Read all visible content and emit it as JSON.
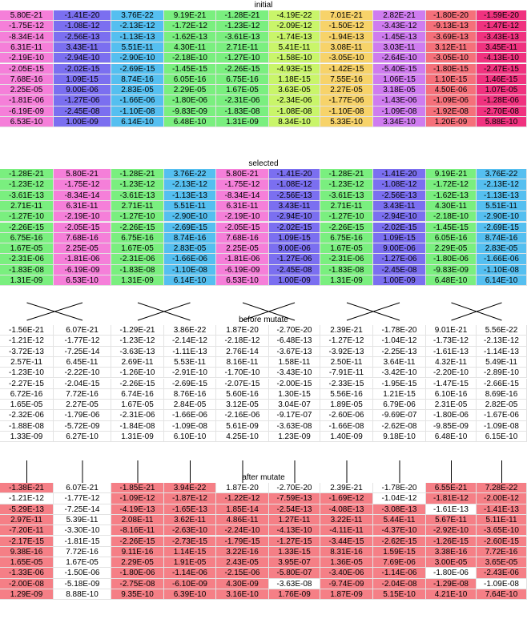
{
  "sections": [
    {
      "title": "initial",
      "rows": [
        [
          "5.80E-21",
          "-1.41E-20",
          "3.76E-22",
          "9.19E-21",
          "-1.28E-21",
          "-4.19E-22",
          "7.01E-21",
          "2.82E-21",
          "-1.80E-20",
          "-1.59E-20"
        ],
        [
          "-1.75E-12",
          "-1.08E-12",
          "-2.13E-12",
          "-1.72E-12",
          "-1.23E-12",
          "-2.09E-12",
          "-1.50E-12",
          "-3.43E-12",
          "-9.13E-13",
          "-1.47E-12"
        ],
        [
          "-8.34E-14",
          "-2.56E-13",
          "-1.13E-13",
          "-1.62E-13",
          "-3.61E-13",
          "-1.74E-13",
          "-1.94E-13",
          "-1.45E-13",
          "-3.69E-13",
          "-3.43E-13"
        ],
        [
          "6.31E-11",
          "3.43E-11",
          "5.51E-11",
          "4.30E-11",
          "2.71E-11",
          "5.41E-11",
          "3.08E-11",
          "3.03E-11",
          "3.12E-11",
          "3.45E-11"
        ],
        [
          "-2.19E-10",
          "-2.94E-10",
          "-2.90E-10",
          "-2.18E-10",
          "-1.27E-10",
          "-1.58E-10",
          "-3.05E-10",
          "-2.64E-10",
          "-3.05E-10",
          "-4.13E-10"
        ],
        [
          "-2.05E-15",
          "-2.02E-15",
          "-2.69E-15",
          "-1.45E-15",
          "-2.26E-15",
          "-4.93E-15",
          "-1.42E-15",
          "-5.40E-15",
          "-1.80E-15",
          "-2.47E-15"
        ],
        [
          "7.68E-16",
          "1.09E-15",
          "8.74E-16",
          "6.05E-16",
          "6.75E-16",
          "1.18E-15",
          "7.55E-16",
          "1.06E-15",
          "1.10E-15",
          "1.46E-15"
        ],
        [
          "2.25E-05",
          "9.00E-06",
          "2.83E-05",
          "2.29E-05",
          "1.67E-05",
          "3.63E-05",
          "2.27E-05",
          "3.18E-05",
          "4.50E-06",
          "1.07E-05"
        ],
        [
          "-1.81E-06",
          "-1.27E-06",
          "-1.66E-06",
          "-1.80E-06",
          "-2.31E-06",
          "-2.34E-06",
          "-1.77E-06",
          "-1.43E-06",
          "-1.09E-06",
          "-1.28E-06"
        ],
        [
          "-6.19E-09",
          "-2.45E-08",
          "-1.10E-08",
          "-9.83E-09",
          "-1.83E-08",
          "-1.08E-08",
          "-1.10E-08",
          "-1.09E-08",
          "-1.92E-08",
          "-2.70E-08"
        ],
        [
          "6.53E-10",
          "1.00E-09",
          "6.14E-10",
          "6.48E-10",
          "1.31E-09",
          "8.34E-10",
          "5.33E-10",
          "3.34E-10",
          "1.20E-09",
          "5.88E-10"
        ]
      ]
    },
    {
      "title": "selected",
      "rows": [
        [
          "-1.28E-21",
          "5.80E-21",
          "-1.28E-21",
          "3.76E-22",
          "5.80E-21",
          "-1.41E-20",
          "-1.28E-21",
          "-1.41E-20",
          "9.19E-21",
          "3.76E-22"
        ],
        [
          "-1.23E-12",
          "-1.75E-12",
          "-1.23E-12",
          "-2.13E-12",
          "-1.75E-12",
          "-1.08E-12",
          "-1.23E-12",
          "-1.08E-12",
          "-1.72E-12",
          "-2.13E-12"
        ],
        [
          "-3.61E-13",
          "-8.34E-14",
          "-3.61E-13",
          "-1.13E-13",
          "-8.34E-14",
          "-2.56E-13",
          "-3.61E-13",
          "-2.56E-13",
          "-1.62E-13",
          "-1.13E-13"
        ],
        [
          "2.71E-11",
          "6.31E-11",
          "2.71E-11",
          "5.51E-11",
          "6.31E-11",
          "3.43E-11",
          "2.71E-11",
          "3.43E-11",
          "4.30E-11",
          "5.51E-11"
        ],
        [
          "-1.27E-10",
          "-2.19E-10",
          "-1.27E-10",
          "-2.90E-10",
          "-2.19E-10",
          "-2.94E-10",
          "-1.27E-10",
          "-2.94E-10",
          "-2.18E-10",
          "-2.90E-10"
        ],
        [
          "-2.26E-15",
          "-2.05E-15",
          "-2.26E-15",
          "-2.69E-15",
          "-2.05E-15",
          "-2.02E-15",
          "-2.26E-15",
          "-2.02E-15",
          "-1.45E-15",
          "-2.69E-15"
        ],
        [
          "6.75E-16",
          "7.68E-16",
          "6.75E-16",
          "8.74E-16",
          "7.68E-16",
          "1.09E-15",
          "6.75E-16",
          "1.09E-15",
          "6.05E-16",
          "8.74E-16"
        ],
        [
          "1.67E-05",
          "2.25E-05",
          "1.67E-05",
          "2.83E-05",
          "2.25E-05",
          "9.00E-06",
          "1.67E-05",
          "9.00E-06",
          "2.29E-05",
          "2.83E-05"
        ],
        [
          "-2.31E-06",
          "-1.81E-06",
          "-2.31E-06",
          "-1.66E-06",
          "-1.81E-06",
          "-1.27E-06",
          "-2.31E-06",
          "-1.27E-06",
          "-1.80E-06",
          "-1.66E-06"
        ],
        [
          "-1.83E-08",
          "-6.19E-09",
          "-1.83E-08",
          "-1.10E-08",
          "-6.19E-09",
          "-2.45E-08",
          "-1.83E-08",
          "-2.45E-08",
          "-9.83E-09",
          "-1.10E-08"
        ],
        [
          "1.31E-09",
          "6.53E-10",
          "1.31E-09",
          "6.14E-10",
          "6.53E-10",
          "1.00E-09",
          "1.31E-09",
          "1.00E-09",
          "6.48E-10",
          "6.14E-10"
        ]
      ]
    },
    {
      "title": "before mutate",
      "rows": [
        [
          "-1.56E-21",
          "6.07E-21",
          "-1.29E-21",
          "3.86E-22",
          "1.87E-20",
          "-2.70E-20",
          "2.39E-21",
          "-1.78E-20",
          "9.01E-21",
          "5.56E-22"
        ],
        [
          "-1.21E-12",
          "-1.77E-12",
          "-1.23E-12",
          "-2.14E-12",
          "-2.18E-12",
          "-6.48E-13",
          "-1.27E-12",
          "-1.04E-12",
          "-1.73E-12",
          "-2.13E-12"
        ],
        [
          "-3.72E-13",
          "-7.25E-14",
          "-3.63E-13",
          "-1.11E-13",
          "2.76E-14",
          "-3.67E-13",
          "-3.92E-13",
          "-2.25E-13",
          "-1.61E-13",
          "-1.14E-13"
        ],
        [
          "2.57E-11",
          "6.45E-11",
          "2.69E-11",
          "5.53E-11",
          "8.16E-11",
          "1.58E-11",
          "2.50E-11",
          "3.64E-11",
          "4.32E-11",
          "5.49E-11"
        ],
        [
          "-1.23E-10",
          "-2.22E-10",
          "-1.26E-10",
          "-2.91E-10",
          "-1.70E-10",
          "-3.43E-10",
          "-7.91E-11",
          "-3.42E-10",
          "-2.20E-10",
          "-2.89E-10"
        ],
        [
          "-2.27E-15",
          "-2.04E-15",
          "-2.26E-15",
          "-2.69E-15",
          "-2.07E-15",
          "-2.00E-15",
          "-2.33E-15",
          "-1.95E-15",
          "-1.47E-15",
          "-2.66E-15"
        ],
        [
          "6.72E-16",
          "7.72E-16",
          "6.74E-16",
          "8.76E-16",
          "5.60E-16",
          "1.30E-15",
          "5.56E-16",
          "1.21E-15",
          "6.10E-16",
          "8.69E-16"
        ],
        [
          "1.65E-05",
          "2.27E-05",
          "1.67E-05",
          "2.84E-05",
          "3.12E-05",
          "3.04E-07",
          "1.89E-05",
          "6.79E-06",
          "2.31E-05",
          "2.82E-05"
        ],
        [
          "-2.32E-06",
          "-1.79E-06",
          "-2.31E-06",
          "-1.66E-06",
          "-2.16E-06",
          "-9.17E-07",
          "-2.60E-06",
          "-9.69E-07",
          "-1.80E-06",
          "-1.67E-06"
        ],
        [
          "-1.88E-08",
          "-5.72E-09",
          "-1.84E-08",
          "-1.09E-08",
          "5.61E-09",
          "-3.63E-08",
          "-1.66E-08",
          "-2.62E-08",
          "-9.85E-09",
          "-1.09E-08"
        ],
        [
          "1.33E-09",
          "6.27E-10",
          "1.31E-09",
          "6.10E-10",
          "4.25E-10",
          "1.23E-09",
          "1.40E-09",
          "9.18E-10",
          "6.48E-10",
          "6.15E-10"
        ]
      ]
    },
    {
      "title": "after mutate",
      "rows": [
        [
          "-1.38E-21",
          "6.07E-21",
          "-1.85E-21",
          "3.94E-22",
          "1.87E-20",
          "-2.70E-20",
          "2.39E-21",
          "-1.78E-20",
          "6.55E-21",
          "7.28E-22"
        ],
        [
          "-1.21E-12",
          "-1.77E-12",
          "-1.09E-12",
          "-1.87E-12",
          "-1.22E-12",
          "-7.59E-13",
          "-1.69E-12",
          "-1.04E-12",
          "-1.81E-12",
          "-2.00E-12"
        ],
        [
          "-5.29E-13",
          "-7.25E-14",
          "-4.19E-13",
          "-1.65E-13",
          "1.85E-14",
          "-2.54E-13",
          "-4.08E-13",
          "-3.08E-13",
          "-1.61E-13",
          "-1.41E-13"
        ],
        [
          "2.97E-11",
          "5.39E-11",
          "2.08E-11",
          "3.62E-11",
          "4.86E-11",
          "1.27E-11",
          "3.22E-11",
          "5.44E-11",
          "5.67E-11",
          "5.11E-11"
        ],
        [
          "-7.20E-11",
          "-3.30E-10",
          "-8.16E-11",
          "-2.63E-10",
          "-2.24E-10",
          "-4.13E-10",
          "-4.11E-11",
          "-4.37E-10",
          "-2.92E-10",
          "-3.65E-10"
        ],
        [
          "-2.17E-15",
          "-1.81E-15",
          "-2.26E-15",
          "-2.73E-15",
          "-1.79E-15",
          "-1.27E-15",
          "-3.44E-15",
          "-2.62E-15",
          "-1.26E-15",
          "-2.60E-15"
        ],
        [
          "9.38E-16",
          "7.72E-16",
          "9.11E-16",
          "1.14E-15",
          "3.22E-16",
          "1.33E-15",
          "8.31E-16",
          "1.59E-15",
          "3.38E-16",
          "7.72E-16"
        ],
        [
          "1.65E-05",
          "1.67E-05",
          "2.29E-05",
          "1.91E-05",
          "2.43E-05",
          "3.95E-07",
          "1.36E-05",
          "7.69E-06",
          "3.00E-05",
          "3.65E-05"
        ],
        [
          "-1.33E-06",
          "-1.50E-06",
          "-1.80E-06",
          "-1.14E-06",
          "-2.15E-06",
          "-5.80E-07",
          "-3.40E-06",
          "-1.14E-06",
          "-1.80E-06",
          "-2.43E-06"
        ],
        [
          "-2.00E-08",
          "-5.18E-09",
          "-2.75E-08",
          "-6.10E-09",
          "4.30E-09",
          "-3.63E-08",
          "-9.74E-09",
          "-2.04E-08",
          "-1.29E-08",
          "-1.09E-08"
        ],
        [
          "1.29E-09",
          "8.88E-10",
          "9.35E-10",
          "6.39E-10",
          "3.16E-10",
          "1.76E-09",
          "1.87E-09",
          "5.15E-10",
          "4.21E-10",
          "7.64E-10"
        ]
      ]
    }
  ],
  "colors": {
    "initial_columns": [
      "#f57fd9",
      "#7b6ff0",
      "#55bff0",
      "#7aef7f",
      "#7aef7f",
      "#c9f56a",
      "#f7d36a",
      "#cf7cef",
      "#f5707a",
      "#f0327f"
    ],
    "selected_columns": [
      "#7aef7f",
      "#f57fd9",
      "#7aef7f",
      "#55bff0",
      "#f57fd9",
      "#7b6ff0",
      "#7aef7f",
      "#7b6ff0",
      "#7aef7f",
      "#55bff0"
    ],
    "mutated_fill": "#f57f86",
    "unchanged_fill": "#ffffff"
  },
  "mutated_columns": [
    true,
    false,
    true,
    true,
    true,
    true,
    true,
    true,
    true,
    true
  ],
  "unchanged_cells": [
    [
      1,
      0
    ],
    [
      0,
      1
    ],
    [
      0,
      4
    ],
    [
      0,
      5
    ],
    [
      0,
      6
    ],
    [
      0,
      7
    ],
    [
      1,
      7
    ],
    [
      2,
      8
    ],
    [
      6,
      1
    ],
    [
      8,
      8
    ],
    [
      9,
      5
    ],
    [
      9,
      9
    ]
  ],
  "crossover_pairs": [
    [
      0,
      1
    ],
    [
      2,
      3
    ],
    [
      4,
      5
    ],
    [
      6,
      7
    ],
    [
      8,
      9
    ]
  ]
}
